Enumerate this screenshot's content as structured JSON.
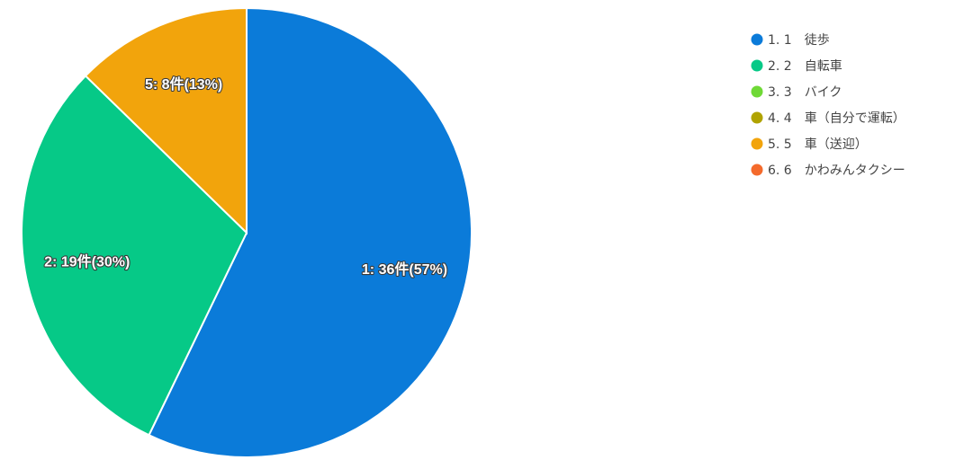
{
  "chart_data": {
    "type": "pie",
    "categories": [
      "1. 1　徒歩",
      "2. 2　自転車",
      "3. 3　バイク",
      "4. 4　車（自分で運転）",
      "5. 5　車（送迎）",
      "6. 6　かわみんタクシー"
    ],
    "values": [
      36,
      19,
      0,
      0,
      8,
      0
    ],
    "percentages": [
      57,
      30,
      0,
      0,
      13,
      0
    ],
    "slice_labels": [
      "1: 36件(57%)",
      "2: 19件(30%)",
      "",
      "",
      "5: 8件(13%)",
      ""
    ],
    "colors": [
      "#0b7bd9",
      "#06c987",
      "#6fd936",
      "#b0a300",
      "#f2a40c",
      "#f46a2c"
    ],
    "legend_placement": "right",
    "start_angle": "top",
    "direction": "clockwise"
  }
}
